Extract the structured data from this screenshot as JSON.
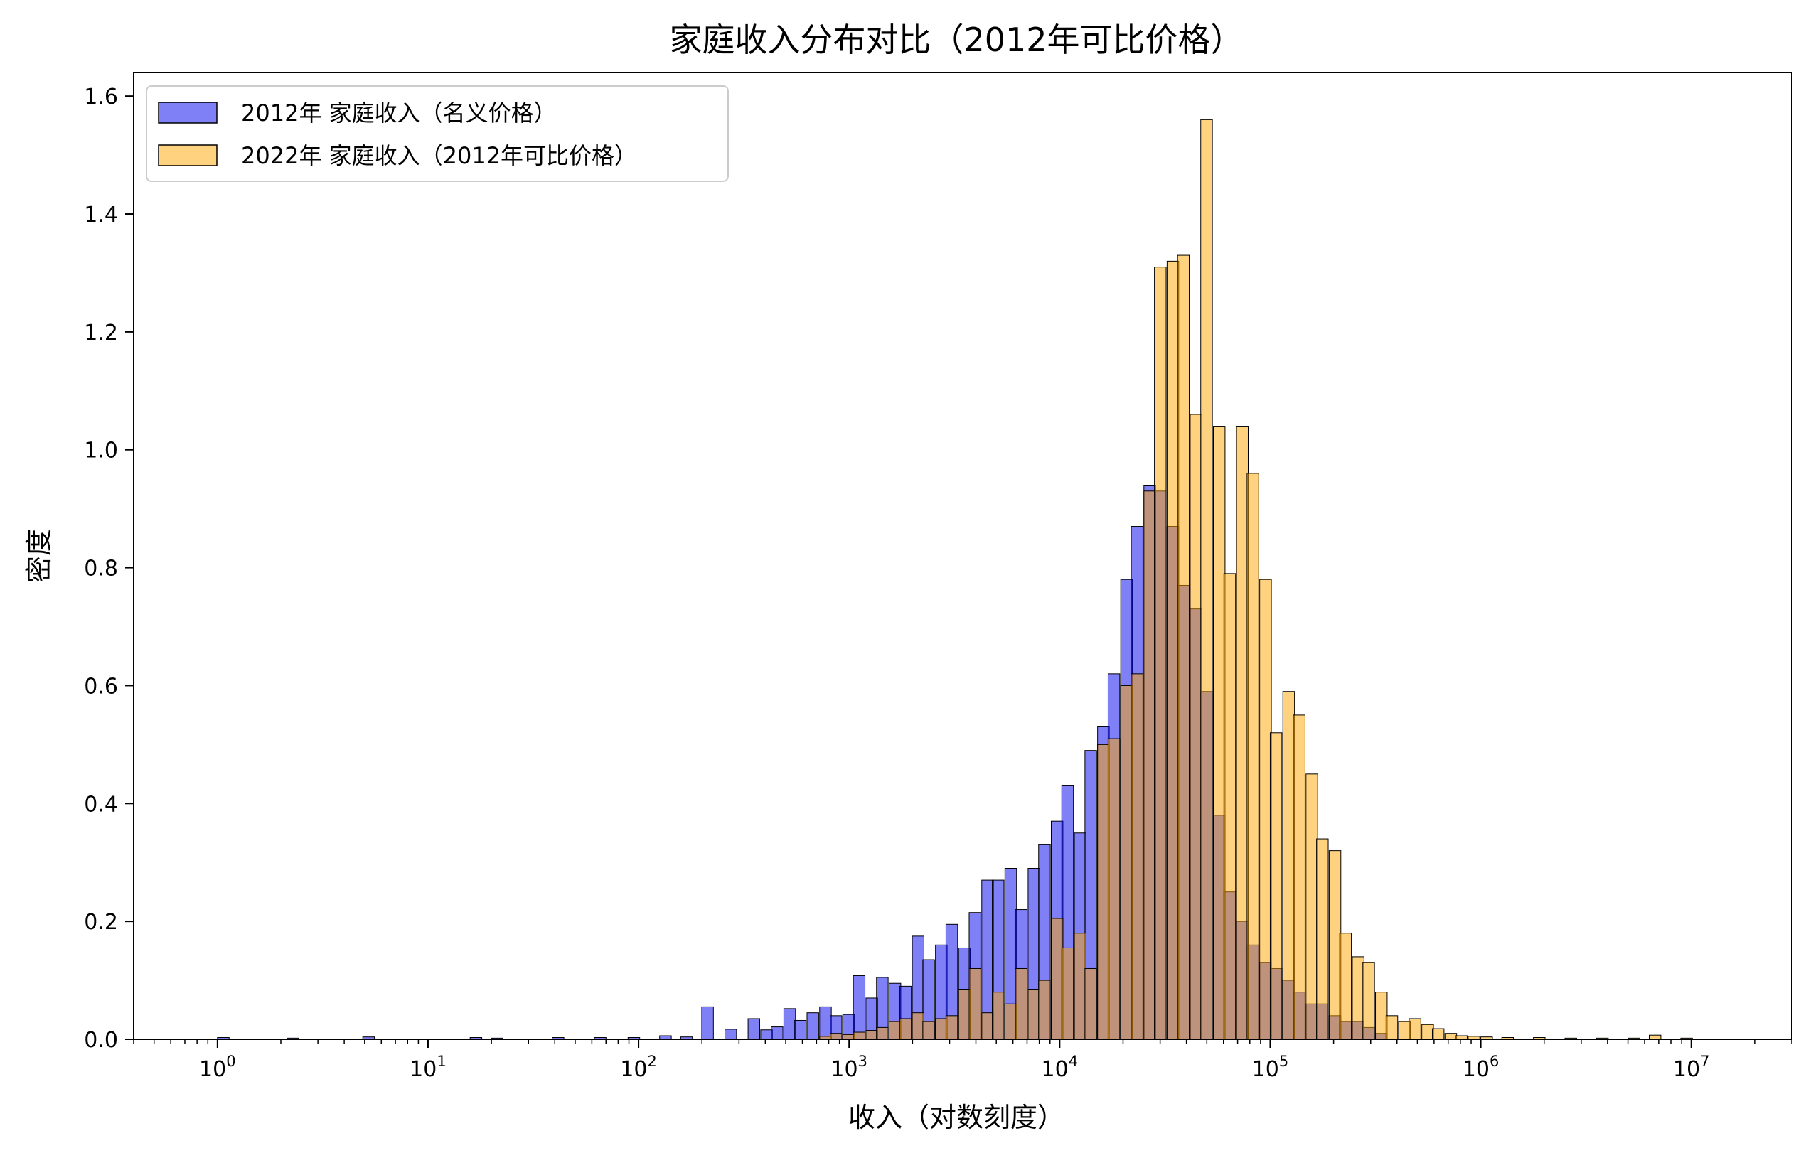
{
  "chart_data": {
    "type": "bar",
    "title": "家庭收入分布对比（2012年可比价格）",
    "xlabel": "收入（对数刻度）",
    "ylabel": "密度",
    "xscale": "log",
    "xlim": [
      0.4,
      30000000
    ],
    "ylim": [
      0,
      1.64
    ],
    "x_ticks": [
      {
        "base": "10",
        "exp": "0"
      },
      {
        "base": "10",
        "exp": "1"
      },
      {
        "base": "10",
        "exp": "2"
      },
      {
        "base": "10",
        "exp": "3"
      },
      {
        "base": "10",
        "exp": "4"
      },
      {
        "base": "10",
        "exp": "5"
      },
      {
        "base": "10",
        "exp": "6"
      },
      {
        "base": "10",
        "exp": "7"
      }
    ],
    "y_ticks": [
      "0.0",
      "0.2",
      "0.4",
      "0.6",
      "0.8",
      "1.0",
      "1.2",
      "1.4",
      "1.6"
    ],
    "grid": false,
    "legend_position": "top-left",
    "bin_log_width": 0.0554,
    "series": [
      {
        "name": "2012年 家庭收入（名义价格）",
        "color": "#0000ee",
        "bins": [
          [
            0.0,
            0.003
          ],
          [
            0.33,
            0.002
          ],
          [
            0.69,
            0.004
          ],
          [
            1.2,
            0.003
          ],
          [
            1.3,
            0.002
          ],
          [
            1.59,
            0.003
          ],
          [
            1.79,
            0.003
          ],
          [
            1.95,
            0.003
          ],
          [
            2.1,
            0.006
          ],
          [
            2.2,
            0.004
          ],
          [
            2.3,
            0.055
          ],
          [
            2.41,
            0.017
          ],
          [
            2.52,
            0.035
          ],
          [
            2.58,
            0.016
          ],
          [
            2.63,
            0.021
          ],
          [
            2.69,
            0.052
          ],
          [
            2.74,
            0.032
          ],
          [
            2.8,
            0.045
          ],
          [
            2.86,
            0.055
          ],
          [
            2.91,
            0.04
          ],
          [
            2.97,
            0.042
          ],
          [
            3.02,
            0.108
          ],
          [
            3.08,
            0.07
          ],
          [
            3.13,
            0.105
          ],
          [
            3.19,
            0.095
          ],
          [
            3.24,
            0.09
          ],
          [
            3.3,
            0.175
          ],
          [
            3.35,
            0.135
          ],
          [
            3.41,
            0.16
          ],
          [
            3.46,
            0.195
          ],
          [
            3.52,
            0.155
          ],
          [
            3.57,
            0.215
          ],
          [
            3.63,
            0.27
          ],
          [
            3.68,
            0.27
          ],
          [
            3.74,
            0.29
          ],
          [
            3.79,
            0.22
          ],
          [
            3.85,
            0.29
          ],
          [
            3.9,
            0.33
          ],
          [
            3.96,
            0.37
          ],
          [
            4.01,
            0.43
          ],
          [
            4.07,
            0.35
          ],
          [
            4.12,
            0.49
          ],
          [
            4.18,
            0.53
          ],
          [
            4.23,
            0.62
          ],
          [
            4.29,
            0.78
          ],
          [
            4.34,
            0.87
          ],
          [
            4.4,
            0.94
          ],
          [
            4.45,
            0.93
          ],
          [
            4.51,
            0.87
          ],
          [
            4.56,
            0.77
          ],
          [
            4.62,
            0.73
          ],
          [
            4.67,
            0.59
          ],
          [
            4.73,
            0.38
          ],
          [
            4.78,
            0.25
          ],
          [
            4.84,
            0.2
          ],
          [
            4.89,
            0.16
          ],
          [
            4.95,
            0.13
          ],
          [
            5.0,
            0.12
          ],
          [
            5.06,
            0.1
          ],
          [
            5.11,
            0.08
          ],
          [
            5.17,
            0.06
          ],
          [
            5.22,
            0.06
          ],
          [
            5.28,
            0.04
          ],
          [
            5.33,
            0.03
          ],
          [
            5.39,
            0.03
          ],
          [
            5.44,
            0.02
          ],
          [
            5.5,
            0.01
          ]
        ]
      },
      {
        "name": "2022年 家庭收入（2012年可比价格）",
        "color": "#ffa500",
        "bins": [
          [
            2.86,
            0.005
          ],
          [
            2.91,
            0.01
          ],
          [
            2.97,
            0.008
          ],
          [
            3.02,
            0.012
          ],
          [
            3.08,
            0.015
          ],
          [
            3.13,
            0.02
          ],
          [
            3.19,
            0.03
          ],
          [
            3.24,
            0.035
          ],
          [
            3.3,
            0.045
          ],
          [
            3.35,
            0.03
          ],
          [
            3.41,
            0.035
          ],
          [
            3.46,
            0.04
          ],
          [
            3.52,
            0.085
          ],
          [
            3.57,
            0.12
          ],
          [
            3.63,
            0.045
          ],
          [
            3.68,
            0.08
          ],
          [
            3.74,
            0.06
          ],
          [
            3.79,
            0.12
          ],
          [
            3.85,
            0.085
          ],
          [
            3.9,
            0.1
          ],
          [
            3.96,
            0.205
          ],
          [
            4.01,
            0.155
          ],
          [
            4.07,
            0.18
          ],
          [
            4.12,
            0.12
          ],
          [
            4.18,
            0.5
          ],
          [
            4.23,
            0.51
          ],
          [
            4.29,
            0.6
          ],
          [
            4.34,
            0.62
          ],
          [
            4.4,
            0.93
          ],
          [
            4.45,
            1.31
          ],
          [
            4.51,
            1.32
          ],
          [
            4.56,
            1.33
          ],
          [
            4.62,
            1.06
          ],
          [
            4.67,
            1.56
          ],
          [
            4.73,
            1.04
          ],
          [
            4.78,
            0.79
          ],
          [
            4.84,
            1.04
          ],
          [
            4.89,
            0.96
          ],
          [
            4.95,
            0.78
          ],
          [
            5.0,
            0.52
          ],
          [
            5.06,
            0.59
          ],
          [
            5.11,
            0.55
          ],
          [
            5.17,
            0.45
          ],
          [
            5.22,
            0.34
          ],
          [
            5.28,
            0.32
          ],
          [
            5.33,
            0.18
          ],
          [
            5.39,
            0.14
          ],
          [
            5.44,
            0.13
          ],
          [
            5.5,
            0.08
          ],
          [
            5.55,
            0.04
          ],
          [
            5.61,
            0.03
          ],
          [
            5.66,
            0.035
          ],
          [
            5.72,
            0.025
          ],
          [
            5.77,
            0.018
          ],
          [
            5.83,
            0.01
          ],
          [
            5.88,
            0.006
          ],
          [
            5.94,
            0.005
          ],
          [
            6.0,
            0.004
          ],
          [
            6.1,
            0.003
          ],
          [
            6.25,
            0.003
          ],
          [
            6.4,
            0.002
          ],
          [
            6.55,
            0.002
          ],
          [
            6.7,
            0.002
          ],
          [
            6.8,
            0.007
          ],
          [
            6.95,
            0.002
          ]
        ]
      }
    ]
  }
}
